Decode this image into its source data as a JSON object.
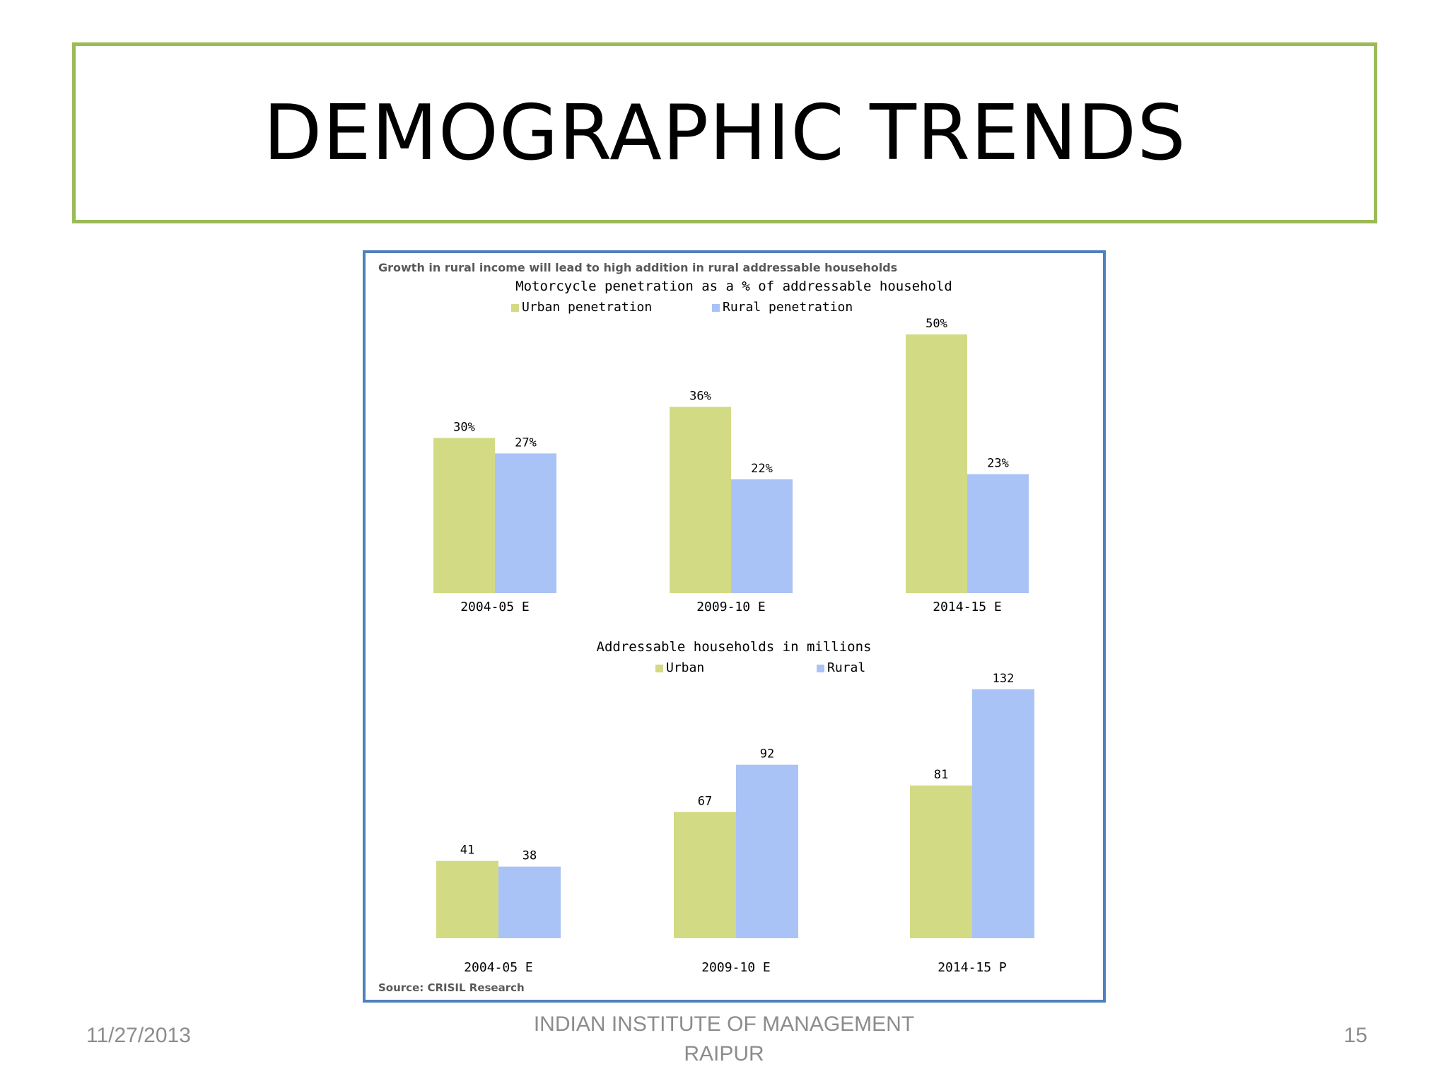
{
  "slide": {
    "title": "DEMOGRAPHIC TRENDS",
    "date": "11/27/2013",
    "footer_line1": "INDIAN INSTITUTE OF MANAGEMENT",
    "footer_line2": "RAIPUR",
    "page_number": "15"
  },
  "figure": {
    "headline": "Growth in rural income will lead to high addition in rural addressable households",
    "source": "Source: CRISIL Research"
  },
  "colors": {
    "urban": "#d3da84",
    "rural": "#aac3f6",
    "title_border": "#9bbb59",
    "figure_border": "#4f81bd"
  },
  "chart_data": [
    {
      "type": "bar",
      "title": "Motorcycle penetration as a % of addressable household",
      "categories": [
        "2004-05 E",
        "2009-10 E",
        "2014-15 E"
      ],
      "series": [
        {
          "name": "Urban penetration",
          "values": [
            30,
            36,
            50
          ],
          "labels": [
            "30%",
            "36%",
            "50%"
          ]
        },
        {
          "name": "Rural penetration",
          "values": [
            27,
            22,
            23
          ],
          "labels": [
            "27%",
            "22%",
            "23%"
          ]
        }
      ],
      "legend": "top-center",
      "ylim": [
        0,
        50
      ],
      "grid": false
    },
    {
      "type": "bar",
      "title": "Addressable households in millions",
      "categories": [
        "2004-05 E",
        "2009-10 E",
        "2014-15 P"
      ],
      "series": [
        {
          "name": "Urban",
          "values": [
            41,
            67,
            81
          ],
          "labels": [
            "41",
            "67",
            "81"
          ]
        },
        {
          "name": "Rural",
          "values": [
            38,
            92,
            132
          ],
          "labels": [
            "38",
            "92",
            "132"
          ]
        }
      ],
      "legend": "top-center",
      "ylim": [
        0,
        132
      ],
      "grid": false
    }
  ]
}
